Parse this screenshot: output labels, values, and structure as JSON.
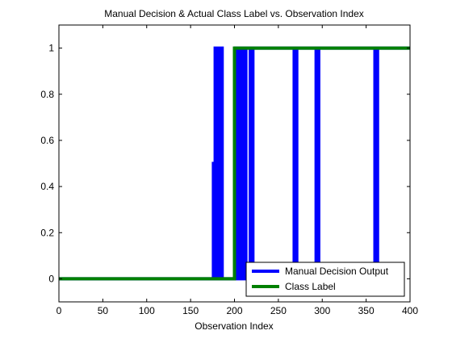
{
  "chart_data": {
    "type": "line",
    "title": "Manual Decision & Actual Class Label vs. Observation Index",
    "xlabel": "Observation Index",
    "ylabel": "",
    "xlim": [
      0,
      400
    ],
    "ylim": [
      -0.1,
      1.1
    ],
    "xticks": [
      0,
      50,
      100,
      150,
      200,
      250,
      300,
      350,
      400
    ],
    "yticks": [
      0,
      0.2,
      0.4,
      0.6,
      0.8,
      1
    ],
    "ytick_labels": [
      "0",
      "0.2",
      "0.4",
      "0.6",
      "0.8",
      "1"
    ],
    "grid": false,
    "legend_position": "bottom-right",
    "series": [
      {
        "name": "Manual Decision Output",
        "color": "#0000ff",
        "x": [
          0,
          176,
          176,
          177,
          177,
          178,
          178,
          180,
          180,
          181,
          181,
          182,
          182,
          183,
          183,
          184,
          184,
          185,
          185,
          186,
          186,
          187,
          187,
          200,
          200,
          201,
          201,
          202,
          202,
          203,
          203,
          204,
          204,
          205,
          205,
          206,
          206,
          207,
          207,
          210,
          210,
          211,
          211,
          212,
          212,
          213,
          213,
          218,
          218,
          219,
          219,
          220,
          220,
          221,
          221,
          268,
          268,
          269,
          269,
          270,
          270,
          271,
          271,
          272,
          272,
          293,
          293,
          294,
          294,
          295,
          295,
          296,
          296,
          297,
          297,
          360,
          360,
          361,
          361,
          362,
          362,
          363,
          363,
          400
        ],
        "y": [
          0,
          0,
          0.5,
          0.5,
          0,
          0,
          1,
          1,
          0,
          0,
          1,
          1,
          0,
          0,
          1,
          1,
          0,
          0,
          1,
          1,
          0,
          0,
          0,
          0,
          0.5,
          0.5,
          1,
          1,
          0,
          0,
          1,
          1,
          0,
          0,
          1,
          1,
          0,
          0,
          1,
          1,
          0,
          0,
          1,
          1,
          0,
          0,
          1,
          1,
          0,
          0,
          1,
          1,
          0,
          0,
          1,
          1,
          0,
          0,
          1,
          1,
          0,
          0,
          1,
          1,
          1,
          1,
          0,
          0,
          1,
          1,
          0,
          0,
          1,
          1,
          1,
          1,
          0,
          0,
          1,
          1,
          0,
          0,
          1,
          1
        ]
      },
      {
        "name": "Class Label",
        "color": "#008000",
        "x": [
          0,
          200,
          200,
          400
        ],
        "y": [
          0,
          0,
          1,
          1
        ]
      }
    ]
  }
}
